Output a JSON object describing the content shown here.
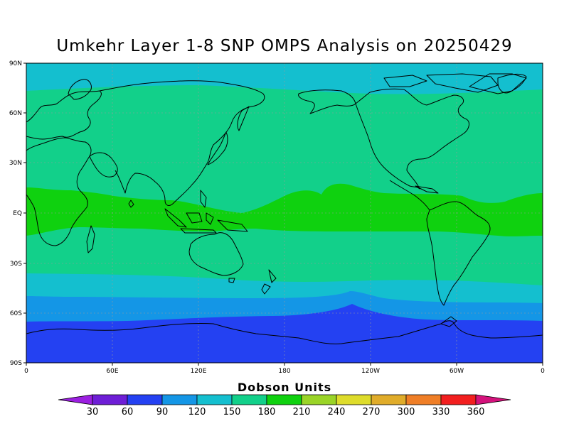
{
  "title": "Umkehr Layer 1-8 SNP OMPS Analysis on 20250429",
  "lat_ticks": [
    "90N",
    "60N",
    "30N",
    "EQ",
    "30S",
    "60S",
    "90S"
  ],
  "lon_ticks": [
    "0",
    "60E",
    "120E",
    "180",
    "120W",
    "60W",
    "0"
  ],
  "units_label": "Dobson Units",
  "colorbar": {
    "levels": [
      "30",
      "60",
      "90",
      "120",
      "150",
      "180",
      "210",
      "240",
      "270",
      "300",
      "330",
      "360"
    ],
    "colors": [
      "#9b1fe0",
      "#6e1ed6",
      "#2441f2",
      "#1496e6",
      "#14bfcf",
      "#12d08a",
      "#0fd10f",
      "#9ad427",
      "#dedc2b",
      "#e0ac2a",
      "#ef7e26",
      "#f21f1f",
      "#d4127c"
    ]
  },
  "field_colors": {
    "band_60_90": "#2441f2",
    "band_90_120": "#1496e6",
    "band_120_150": "#14bfcf",
    "band_150_180": "#12d08a",
    "band_180_210": "#0fd10f"
  }
}
